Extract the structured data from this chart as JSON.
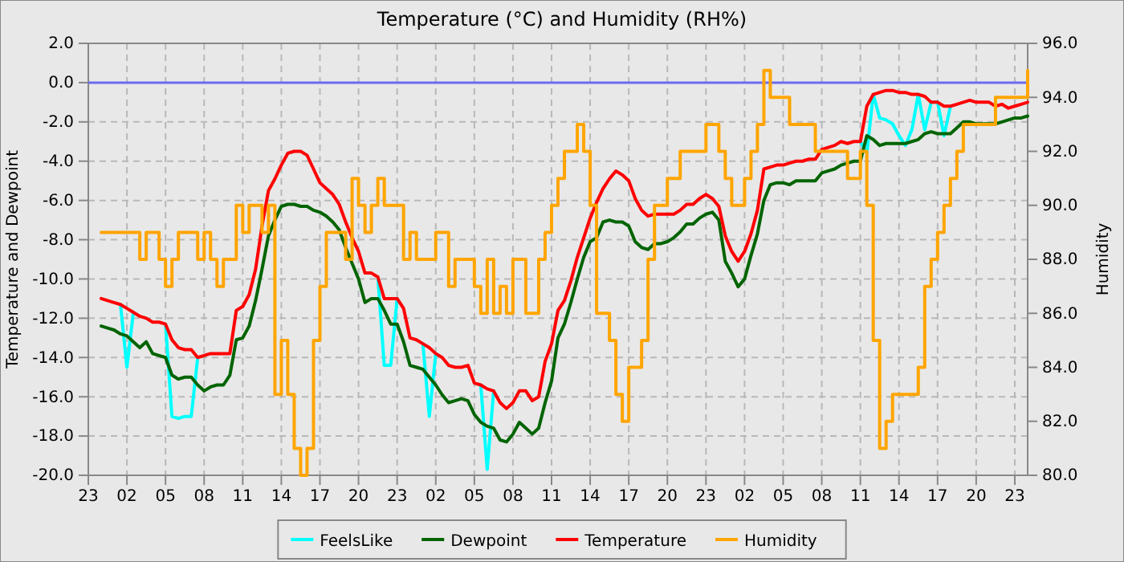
{
  "chart_data": {
    "type": "line",
    "title": "Temperature (°C) and Humidity (RH%)",
    "ylabel": "Temperature and Dewpoint",
    "y2label": "Humidity",
    "categories": [
      "23",
      null,
      null,
      null,
      null,
      null,
      "02",
      null,
      null,
      null,
      null,
      null,
      "05",
      null,
      null,
      null,
      null,
      null,
      "08",
      null,
      null,
      null,
      null,
      null,
      "11",
      null,
      null,
      null,
      null,
      null,
      "14",
      null,
      null,
      null,
      null,
      null,
      "17",
      null,
      null,
      null,
      null,
      null,
      "20",
      null,
      null,
      null,
      null,
      null,
      "23",
      null,
      null,
      null,
      null,
      null,
      "02",
      null,
      null,
      null,
      null,
      null,
      "05",
      null,
      null,
      null,
      null,
      null,
      "08",
      null,
      null,
      null,
      null,
      null,
      "11",
      null,
      null,
      null,
      null,
      null,
      "14",
      null,
      null,
      null,
      null,
      null,
      "17",
      null,
      null,
      null,
      null,
      null,
      "20",
      null,
      null,
      null,
      null,
      null,
      "23",
      null,
      null,
      null,
      null,
      null,
      "02",
      null,
      null,
      null,
      null,
      null,
      "05",
      null,
      null,
      null,
      null,
      null,
      "08",
      null,
      null,
      null,
      null,
      null,
      "11",
      null,
      null,
      null,
      null,
      null,
      "14",
      null,
      null,
      null,
      null,
      null,
      "17",
      null,
      null,
      null,
      null,
      null,
      "20",
      null,
      null,
      null,
      null,
      null,
      "23",
      null,
      null
    ],
    "ylim": [
      -20,
      2
    ],
    "yticks": [
      {
        "value": -20,
        "label": "-20.0"
      },
      {
        "value": -18,
        "label": "-18.0"
      },
      {
        "value": -16,
        "label": "-16.0"
      },
      {
        "value": -14,
        "label": "-14.0"
      },
      {
        "value": -12,
        "label": "-12.0"
      },
      {
        "value": -10,
        "label": "-10.0"
      },
      {
        "value": -8,
        "label": "-8.0"
      },
      {
        "value": -6,
        "label": "-6.0"
      },
      {
        "value": -4,
        "label": "-4.0"
      },
      {
        "value": -2,
        "label": "-2.0"
      },
      {
        "value": 0,
        "label": "0.0"
      },
      {
        "value": 2,
        "label": "2.0"
      }
    ],
    "y2lim": [
      80,
      96
    ],
    "y2ticks": [
      {
        "value": 80,
        "label": "80.0"
      },
      {
        "value": 82,
        "label": "82.0"
      },
      {
        "value": 84,
        "label": "84.0"
      },
      {
        "value": 86,
        "label": "86.0"
      },
      {
        "value": 88,
        "label": "88.0"
      },
      {
        "value": 90,
        "label": "90.0"
      },
      {
        "value": 92,
        "label": "92.0"
      },
      {
        "value": 94,
        "label": "94.0"
      },
      {
        "value": 96,
        "label": "96.0"
      }
    ],
    "grid": true,
    "legend": "bottom",
    "ref_lines": [
      {
        "axis": "y",
        "value": 0,
        "color": "#6b6bf0"
      }
    ],
    "series": [
      {
        "name": "FeelsLike",
        "type": "line",
        "color": "#00ffff",
        "values": [
          null,
          null,
          null,
          null,
          null,
          -11.3,
          -14.5,
          -11.7,
          null,
          null,
          null,
          null,
          -12.3,
          -17.0,
          -17.1,
          -17.0,
          -17.0,
          -14.0,
          null,
          null,
          null,
          null,
          null,
          null,
          null,
          null,
          null,
          null,
          null,
          null,
          null,
          null,
          null,
          null,
          null,
          null,
          null,
          null,
          null,
          null,
          null,
          null,
          null,
          null,
          null,
          -9.9,
          -14.4,
          -14.4,
          -11.0,
          null,
          null,
          null,
          -13.3,
          -17.0,
          -13.8,
          null,
          null,
          null,
          null,
          null,
          null,
          -15.4,
          -19.7,
          -15.7,
          null,
          null,
          null,
          null,
          null,
          null,
          null,
          null,
          null,
          null,
          null,
          null,
          null,
          null,
          null,
          null,
          null,
          null,
          null,
          null,
          null,
          null,
          null,
          null,
          null,
          null,
          null,
          null,
          null,
          null,
          null,
          null,
          null,
          null,
          null,
          null,
          null,
          null,
          null,
          null,
          null,
          null,
          null,
          null,
          null,
          null,
          null,
          null,
          null,
          null,
          null,
          null,
          null,
          null,
          null,
          null,
          -3.0,
          -3.6,
          -0.6,
          -1.8,
          -1.9,
          -2.1,
          -2.7,
          -3.2,
          -2.4,
          -0.6,
          -2.4,
          -1.0,
          -1.0,
          -2.7,
          -1.2,
          null,
          null,
          null,
          null,
          null,
          null,
          null,
          null,
          null,
          null,
          null,
          null
        ]
      },
      {
        "name": "Dewpoint",
        "type": "line",
        "color": "#006400",
        "values": [
          null,
          null,
          -12.4,
          -12.5,
          -12.6,
          -12.8,
          -12.9,
          -13.2,
          -13.5,
          -13.2,
          -13.8,
          -13.9,
          -14.0,
          -14.9,
          -15.1,
          -15.0,
          -15.0,
          -15.4,
          -15.7,
          -15.5,
          -15.4,
          -15.4,
          -14.9,
          -13.1,
          -13.0,
          -12.4,
          -11.1,
          -9.5,
          -7.8,
          -7.0,
          -6.3,
          -6.2,
          -6.2,
          -6.3,
          -6.3,
          -6.5,
          -6.6,
          -6.8,
          -7.1,
          -7.5,
          -8.4,
          -9.2,
          -10.0,
          -11.2,
          -11.0,
          -11.0,
          -11.6,
          -12.3,
          -12.3,
          -13.2,
          -14.4,
          -14.5,
          -14.6,
          -15.0,
          -15.4,
          -15.9,
          -16.3,
          -16.2,
          -16.1,
          -16.2,
          -16.9,
          -17.3,
          -17.5,
          -17.6,
          -18.2,
          -18.3,
          -17.9,
          -17.3,
          -17.6,
          -17.9,
          -17.6,
          -16.3,
          -15.2,
          -13.0,
          -12.3,
          -11.2,
          -10.0,
          -8.9,
          -8.1,
          -7.9,
          -7.1,
          -7.0,
          -7.1,
          -7.1,
          -7.3,
          -8.1,
          -8.4,
          -8.5,
          -8.2,
          -8.2,
          -8.1,
          -7.9,
          -7.6,
          -7.2,
          -7.2,
          -6.9,
          -6.7,
          -6.6,
          -7.0,
          -9.1,
          -9.7,
          -10.4,
          -10.0,
          -8.8,
          -7.7,
          -6.0,
          -5.2,
          -5.1,
          -5.1,
          -5.2,
          -5.0,
          -5.0,
          -5.0,
          -5.0,
          -4.6,
          -4.5,
          -4.4,
          -4.2,
          -4.1,
          -4.0,
          -4.0,
          -2.7,
          -2.9,
          -3.2,
          -3.1,
          -3.1,
          -3.1,
          -3.1,
          -3.0,
          -2.9,
          -2.6,
          -2.5,
          -2.6,
          -2.6,
          -2.6,
          -2.3,
          -2.0,
          -2.0,
          -2.1,
          -2.1,
          -2.1,
          -2.1,
          -2.0,
          -1.9,
          -1.8,
          -1.8,
          -1.7
        ]
      },
      {
        "name": "Temperature",
        "type": "line",
        "color": "#ff0000",
        "values": [
          null,
          null,
          -11.0,
          -11.1,
          -11.2,
          -11.3,
          -11.5,
          -11.7,
          -11.9,
          -12.0,
          -12.2,
          -12.2,
          -12.3,
          -13.1,
          -13.5,
          -13.6,
          -13.6,
          -14.0,
          -13.9,
          -13.8,
          -13.8,
          -13.8,
          -13.8,
          -11.6,
          -11.4,
          -10.8,
          -9.5,
          -7.3,
          -5.5,
          -4.9,
          -4.2,
          -3.6,
          -3.5,
          -3.5,
          -3.7,
          -4.4,
          -5.1,
          -5.4,
          -5.7,
          -6.2,
          -7.1,
          -7.9,
          -8.6,
          -9.7,
          -9.7,
          -9.9,
          -11.0,
          -11.0,
          -11.0,
          -11.5,
          -13.0,
          -13.1,
          -13.3,
          -13.5,
          -13.8,
          -14.0,
          -14.4,
          -14.5,
          -14.5,
          -14.4,
          -15.3,
          -15.4,
          -15.6,
          -15.7,
          -16.3,
          -16.6,
          -16.3,
          -15.7,
          -15.7,
          -16.2,
          -16.0,
          -14.2,
          -13.3,
          -11.6,
          -11.1,
          -10.1,
          -8.9,
          -7.9,
          -6.9,
          -6.1,
          -5.4,
          -4.9,
          -4.5,
          -4.7,
          -5.0,
          -5.9,
          -6.5,
          -6.8,
          -6.7,
          -6.7,
          -6.7,
          -6.7,
          -6.5,
          -6.2,
          -6.2,
          -5.9,
          -5.7,
          -5.9,
          -6.3,
          -7.8,
          -8.6,
          -9.1,
          -8.6,
          -7.7,
          -6.5,
          -4.4,
          -4.3,
          -4.2,
          -4.2,
          -4.1,
          -4.0,
          -4.0,
          -3.9,
          -3.9,
          -3.4,
          -3.3,
          -3.2,
          -3.0,
          -3.1,
          -3.0,
          -3.0,
          -1.2,
          -0.6,
          -0.5,
          -0.4,
          -0.4,
          -0.5,
          -0.5,
          -0.6,
          -0.6,
          -0.7,
          -1.0,
          -1.0,
          -1.2,
          -1.2,
          -1.1,
          -1.0,
          -0.9,
          -1.0,
          -1.0,
          -1.0,
          -1.2,
          -1.1,
          -1.3,
          -1.2,
          -1.1,
          -1.0
        ]
      },
      {
        "name": "Humidity",
        "type": "step",
        "axis": "y2",
        "color": "#ffa500",
        "values": [
          null,
          null,
          89,
          89,
          89,
          89,
          89,
          89,
          88,
          89,
          89,
          88,
          87,
          88,
          89,
          89,
          89,
          88,
          89,
          88,
          87,
          88,
          88,
          90,
          89,
          90,
          90,
          89,
          90,
          83,
          85,
          83,
          81,
          80,
          81,
          85,
          87,
          89,
          89,
          89,
          88,
          91,
          90,
          89,
          90,
          91,
          90,
          90,
          90,
          88,
          89,
          88,
          88,
          88,
          89,
          89,
          87,
          88,
          88,
          88,
          87,
          86,
          88,
          86,
          87,
          86,
          88,
          88,
          86,
          86,
          88,
          89,
          90,
          91,
          92,
          92,
          93,
          92,
          90,
          86,
          86,
          85,
          83,
          82,
          84,
          84,
          85,
          88,
          90,
          90,
          91,
          91,
          92,
          92,
          92,
          92,
          93,
          93,
          92,
          91,
          90,
          90,
          91,
          92,
          93,
          95,
          94,
          94,
          94,
          93,
          93,
          93,
          93,
          92,
          92,
          92,
          92,
          92,
          91,
          91,
          92,
          90,
          85,
          81,
          82,
          83,
          83,
          83,
          83,
          84,
          87,
          88,
          89,
          90,
          91,
          92,
          93,
          93,
          93,
          93,
          93,
          94,
          94,
          94,
          94,
          94,
          95
        ]
      }
    ]
  }
}
